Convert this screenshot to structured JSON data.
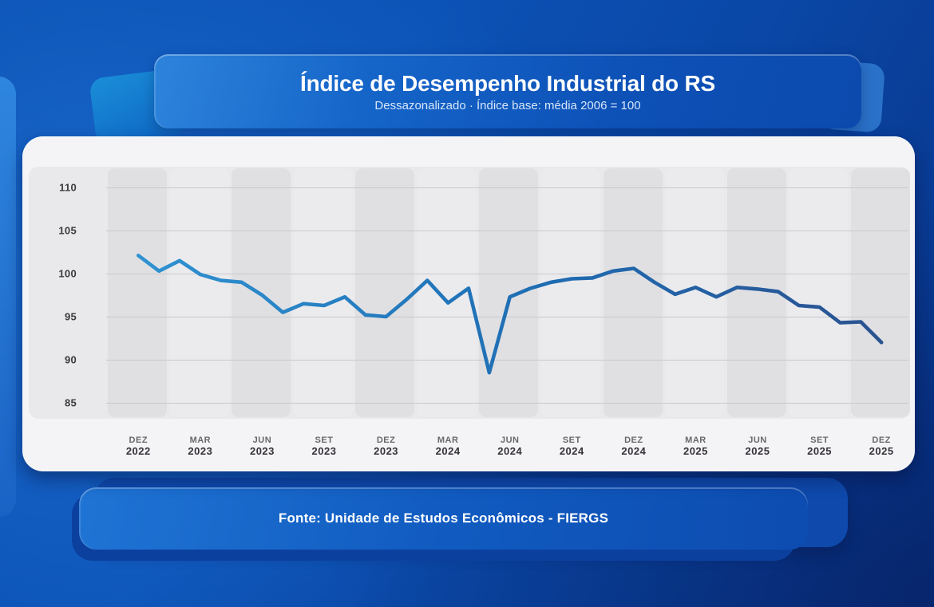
{
  "header": {
    "title": "Índice de Desempenho Industrial do RS",
    "subtitle": "Dessazonalizado · Índice base: média 2006 = 100"
  },
  "footer": {
    "source": "Fonte: Unidade de Estudos Econômicos - FIERGS"
  },
  "chart_data": {
    "type": "line",
    "title": "Índice de Desempenho Industrial do RS",
    "subtitle": "Dessazonalizado · Índice base: média 2006 = 100",
    "x": [
      "2022-12",
      "2023-01",
      "2023-02",
      "2023-03",
      "2023-04",
      "2023-05",
      "2023-06",
      "2023-07",
      "2023-08",
      "2023-09",
      "2023-10",
      "2023-11",
      "2023-12",
      "2024-01",
      "2024-02",
      "2024-03",
      "2024-04",
      "2024-05",
      "2024-06",
      "2024-07",
      "2024-08",
      "2024-09",
      "2024-10",
      "2024-11",
      "2024-12",
      "2025-01",
      "2025-02",
      "2025-03",
      "2025-04",
      "2025-05",
      "2025-06",
      "2025-07",
      "2025-08",
      "2025-09",
      "2025-10",
      "2025-11",
      "2025-12"
    ],
    "values": [
      102.1,
      100.3,
      101.5,
      99.9,
      99.2,
      99.0,
      97.5,
      95.5,
      96.5,
      96.3,
      97.3,
      95.2,
      95.0,
      97.0,
      99.2,
      96.6,
      98.3,
      88.5,
      97.3,
      98.3,
      99.0,
      99.4,
      99.5,
      100.3,
      100.6,
      99.0,
      97.6,
      98.4,
      97.3,
      98.4,
      98.2,
      97.9,
      96.3,
      96.1,
      94.3,
      94.4,
      92.0
    ],
    "x_ticks": [
      {
        "month": "DEZ",
        "year": "2022"
      },
      {
        "month": "MAR",
        "year": "2023"
      },
      {
        "month": "JUN",
        "year": "2023"
      },
      {
        "month": "SET",
        "year": "2023"
      },
      {
        "month": "DEZ",
        "year": "2023"
      },
      {
        "month": "MAR",
        "year": "2024"
      },
      {
        "month": "JUN",
        "year": "2024"
      },
      {
        "month": "SET",
        "year": "2024"
      },
      {
        "month": "DEZ",
        "year": "2024"
      },
      {
        "month": "MAR",
        "year": "2025"
      },
      {
        "month": "JUN",
        "year": "2025"
      },
      {
        "month": "SET",
        "year": "2025"
      },
      {
        "month": "DEZ",
        "year": "2025"
      }
    ],
    "y_ticks": [
      110,
      105,
      100,
      95,
      90,
      85
    ],
    "ylim": [
      83,
      112
    ],
    "grid": "horizontal",
    "legend": "none",
    "line_colors": [
      "#2f92d1",
      "#1f6cb2",
      "#2a5290"
    ],
    "source": "Fonte: Unidade de Estudos Econômicos - FIERGS"
  }
}
